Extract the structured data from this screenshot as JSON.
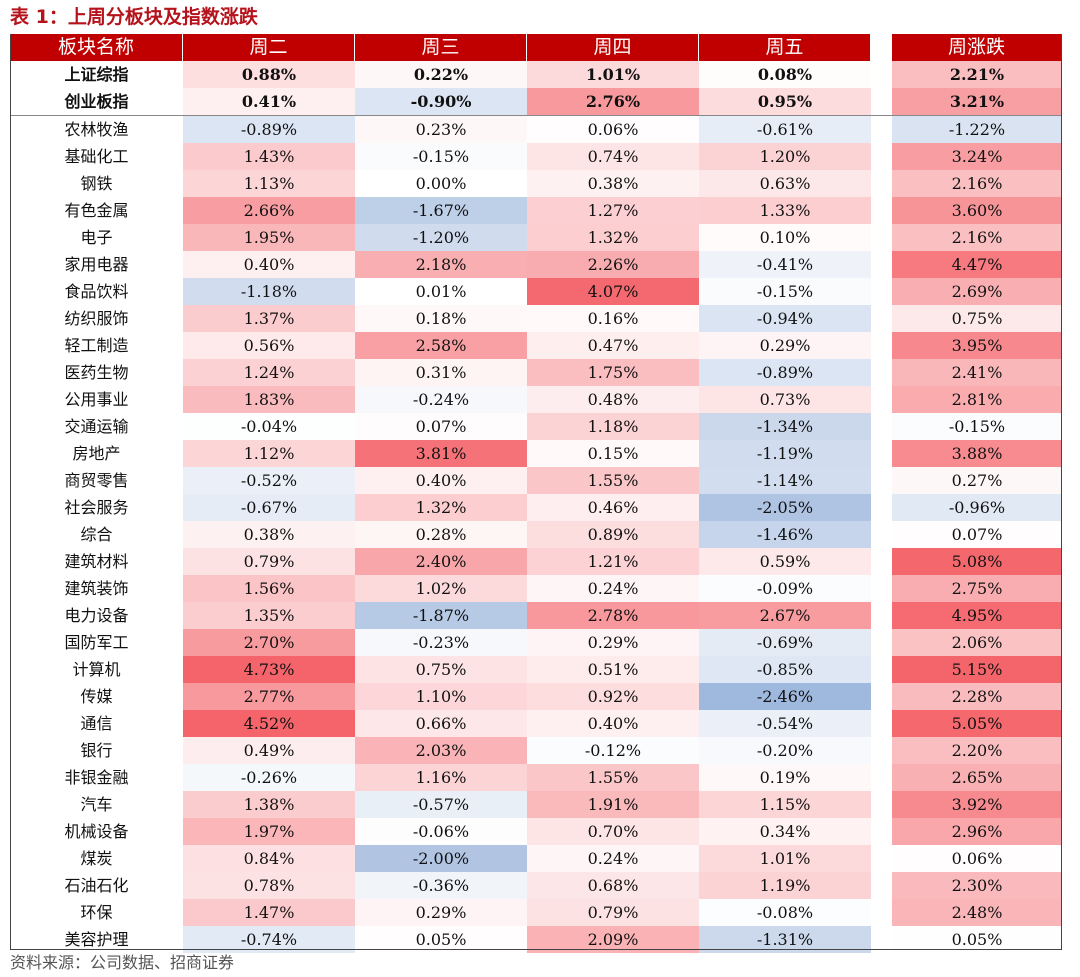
{
  "title": "表 1：上周分板块及指数涨跌",
  "source": "资料来源：公司数据、招商证券",
  "colors": {
    "header_bg": "#c00000",
    "positive_max": "#f4646a",
    "negative_max": "#5b86c5",
    "neutral": "#ffffff"
  },
  "columns": [
    "板块名称",
    "周二",
    "周三",
    "周四",
    "周五",
    "周涨跌"
  ],
  "indices": [
    {
      "name": "上证综指",
      "values": [
        "0.88%",
        "0.22%",
        "1.01%",
        "0.08%",
        "2.21%"
      ]
    },
    {
      "name": "创业板指",
      "values": [
        "0.41%",
        "-0.90%",
        "2.76%",
        "0.95%",
        "3.21%"
      ]
    }
  ],
  "sectors": [
    {
      "name": "农林牧渔",
      "values": [
        "-0.89%",
        "0.23%",
        "0.06%",
        "-0.61%",
        "-1.22%"
      ]
    },
    {
      "name": "基础化工",
      "values": [
        "1.43%",
        "-0.15%",
        "0.74%",
        "1.20%",
        "3.24%"
      ]
    },
    {
      "name": "钢铁",
      "values": [
        "1.13%",
        "0.00%",
        "0.38%",
        "0.63%",
        "2.16%"
      ]
    },
    {
      "name": "有色金属",
      "values": [
        "2.66%",
        "-1.67%",
        "1.27%",
        "1.33%",
        "3.60%"
      ]
    },
    {
      "name": "电子",
      "values": [
        "1.95%",
        "-1.20%",
        "1.32%",
        "0.10%",
        "2.16%"
      ]
    },
    {
      "name": "家用电器",
      "values": [
        "0.40%",
        "2.18%",
        "2.26%",
        "-0.41%",
        "4.47%"
      ]
    },
    {
      "name": "食品饮料",
      "values": [
        "-1.18%",
        "0.01%",
        "4.07%",
        "-0.15%",
        "2.69%"
      ]
    },
    {
      "name": "纺织服饰",
      "values": [
        "1.37%",
        "0.18%",
        "0.16%",
        "-0.94%",
        "0.75%"
      ]
    },
    {
      "name": "轻工制造",
      "values": [
        "0.56%",
        "2.58%",
        "0.47%",
        "0.29%",
        "3.95%"
      ]
    },
    {
      "name": "医药生物",
      "values": [
        "1.24%",
        "0.31%",
        "1.75%",
        "-0.89%",
        "2.41%"
      ]
    },
    {
      "name": "公用事业",
      "values": [
        "1.83%",
        "-0.24%",
        "0.48%",
        "0.73%",
        "2.81%"
      ]
    },
    {
      "name": "交通运输",
      "values": [
        "-0.04%",
        "0.07%",
        "1.18%",
        "-1.34%",
        "-0.15%"
      ]
    },
    {
      "name": "房地产",
      "values": [
        "1.12%",
        "3.81%",
        "0.15%",
        "-1.19%",
        "3.88%"
      ]
    },
    {
      "name": "商贸零售",
      "values": [
        "-0.52%",
        "0.40%",
        "1.55%",
        "-1.14%",
        "0.27%"
      ]
    },
    {
      "name": "社会服务",
      "values": [
        "-0.67%",
        "1.32%",
        "0.46%",
        "-2.05%",
        "-0.96%"
      ]
    },
    {
      "name": "综合",
      "values": [
        "0.38%",
        "0.28%",
        "0.89%",
        "-1.46%",
        "0.07%"
      ]
    },
    {
      "name": "建筑材料",
      "values": [
        "0.79%",
        "2.40%",
        "1.21%",
        "0.59%",
        "5.08%"
      ]
    },
    {
      "name": "建筑装饰",
      "values": [
        "1.56%",
        "1.02%",
        "0.24%",
        "-0.09%",
        "2.75%"
      ]
    },
    {
      "name": "电力设备",
      "values": [
        "1.35%",
        "-1.87%",
        "2.78%",
        "2.67%",
        "4.95%"
      ]
    },
    {
      "name": "国防军工",
      "values": [
        "2.70%",
        "-0.23%",
        "0.29%",
        "-0.69%",
        "2.06%"
      ]
    },
    {
      "name": "计算机",
      "values": [
        "4.73%",
        "0.75%",
        "0.51%",
        "-0.85%",
        "5.15%"
      ]
    },
    {
      "name": "传媒",
      "values": [
        "2.77%",
        "1.10%",
        "0.92%",
        "-2.46%",
        "2.28%"
      ]
    },
    {
      "name": "通信",
      "values": [
        "4.52%",
        "0.66%",
        "0.40%",
        "-0.54%",
        "5.05%"
      ]
    },
    {
      "name": "银行",
      "values": [
        "0.49%",
        "2.03%",
        "-0.12%",
        "-0.20%",
        "2.20%"
      ]
    },
    {
      "name": "非银金融",
      "values": [
        "-0.26%",
        "1.16%",
        "1.55%",
        "0.19%",
        "2.65%"
      ]
    },
    {
      "name": "汽车",
      "values": [
        "1.38%",
        "-0.57%",
        "1.91%",
        "1.15%",
        "3.92%"
      ]
    },
    {
      "name": "机械设备",
      "values": [
        "1.97%",
        "-0.06%",
        "0.70%",
        "0.34%",
        "2.96%"
      ]
    },
    {
      "name": "煤炭",
      "values": [
        "0.84%",
        "-2.00%",
        "0.24%",
        "1.01%",
        "0.06%"
      ]
    },
    {
      "name": "石油石化",
      "values": [
        "0.78%",
        "-0.36%",
        "0.68%",
        "1.19%",
        "2.30%"
      ]
    },
    {
      "name": "环保",
      "values": [
        "1.47%",
        "0.29%",
        "0.79%",
        "-0.08%",
        "2.48%"
      ]
    },
    {
      "name": "美容护理",
      "values": [
        "-0.74%",
        "0.05%",
        "2.09%",
        "-1.31%",
        "0.05%"
      ]
    }
  ]
}
